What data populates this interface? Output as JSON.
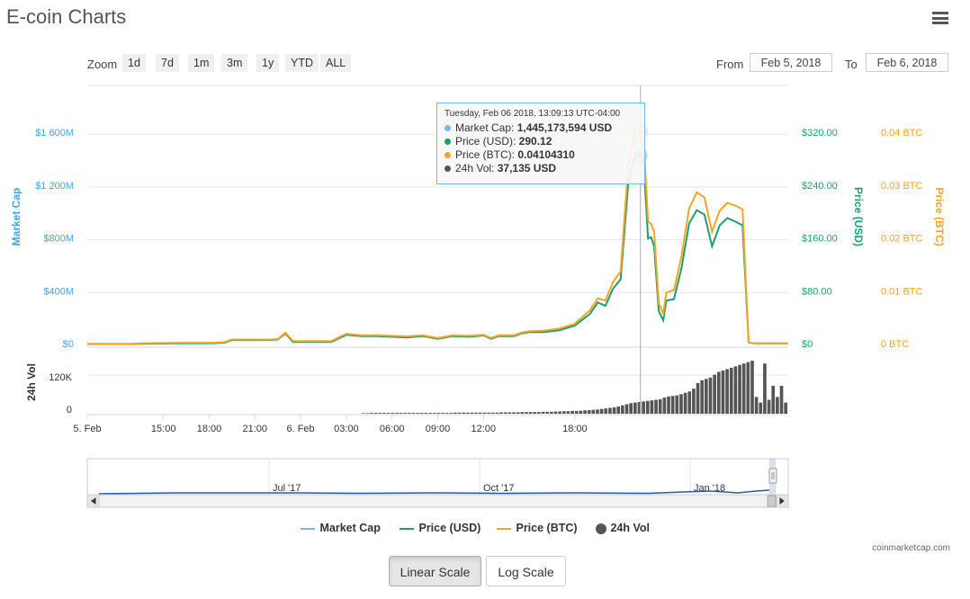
{
  "header": {
    "title": "E-coin Charts"
  },
  "toolbar": {
    "zoom_label": "Zoom",
    "zoom_options": [
      "1d",
      "7d",
      "1m",
      "3m",
      "1y",
      "YTD",
      "ALL"
    ],
    "from_label": "From",
    "from_value": "Feb 5, 2018",
    "to_label": "To",
    "to_value": "Feb 6, 2018"
  },
  "tooltip": {
    "header": "Tuesday, Feb 06 2018, 13:09:13 UTC-04:00",
    "rows": [
      {
        "label": "Market Cap: ",
        "value": "1,445,173,594 USD",
        "color": "#7cb5ec"
      },
      {
        "label": "Price (USD): ",
        "value": "290.12",
        "color": "#1f9e6e"
      },
      {
        "label": "Price (BTC): ",
        "value": "0.04104310",
        "color": "#f7a325"
      },
      {
        "label": "24h Vol: ",
        "value": "37,135 USD",
        "color": "#555555"
      }
    ]
  },
  "legend": {
    "items": [
      {
        "label": "Market Cap",
        "color": "#7cb5ec"
      },
      {
        "label": "Price (USD)",
        "color": "#1f9e6e"
      },
      {
        "label": "Price (BTC)",
        "color": "#f7a325"
      },
      {
        "label": "24h Vol",
        "color": "#555555"
      }
    ]
  },
  "credit": "coinmarketcap.com",
  "scale_buttons": {
    "linear": "Linear Scale",
    "log": "Log Scale"
  },
  "chart_data": {
    "type": "line",
    "x_ticks": [
      "5. Feb",
      "15:00",
      "18:00",
      "21:00",
      "6. Feb",
      "03:00",
      "06:00",
      "09:00",
      "12:00",
      "18:00"
    ],
    "axes": {
      "market_cap": {
        "label": "Market Cap",
        "ticks": [
          "$0",
          "$400M",
          "$800M",
          "$1 200M",
          "$1 600M"
        ],
        "color": "#4aa3df"
      },
      "price_usd": {
        "label": "Price (USD)",
        "ticks": [
          "$0",
          "$80.00",
          "$160.00",
          "$240.00",
          "$320.00"
        ],
        "color": "#1f9e6e",
        "ylim": [
          0,
          320
        ]
      },
      "price_btc": {
        "label": "Price (BTC)",
        "ticks": [
          "0 BTC",
          "0.01 BTC",
          "0.02 BTC",
          "0.03 BTC",
          "0.04 BTC"
        ],
        "color": "#f7a325",
        "ylim": [
          0,
          0.04
        ]
      },
      "volume": {
        "label": "24h Vol",
        "ticks": [
          "0",
          "120K"
        ]
      }
    },
    "hours": [
      0,
      3,
      3.5,
      6,
      8,
      9,
      9.5,
      10,
      12,
      12.5,
      13,
      13.5,
      14,
      15,
      16,
      17,
      18,
      19,
      20,
      21,
      22,
      23,
      24,
      25,
      26,
      26.5,
      27,
      28,
      28.5,
      29,
      30,
      31,
      32,
      33,
      33.5,
      34,
      34.5,
      35,
      35.5,
      36,
      36.3,
      36.5,
      36.8,
      37,
      37.2,
      37.5,
      37.8,
      38,
      38.5,
      39,
      39.5,
      40,
      40.5,
      41,
      41.5,
      42,
      42.5,
      43,
      43.4,
      43.8,
      44,
      44.5,
      45,
      46
    ],
    "series": [
      {
        "name": "Price (USD)",
        "color": "#1f9e6e",
        "values": [
          2,
          2,
          2.5,
          3,
          3,
          4,
          8,
          8,
          8,
          9,
          18,
          5,
          5,
          5,
          5,
          16,
          14,
          14,
          13,
          12,
          14,
          10,
          14,
          13,
          15,
          10,
          14,
          14,
          18,
          20,
          20,
          23,
          30,
          48,
          65,
          60,
          86,
          100,
          245,
          293,
          288,
          282,
          162,
          164,
          150,
          52,
          38,
          68,
          70,
          118,
          185,
          205,
          198,
          150,
          182,
          193,
          188,
          182,
          4,
          3,
          3,
          3,
          3,
          3
        ]
      },
      {
        "name": "Price (BTC)",
        "color": "#f7a325",
        "values": [
          0.0003,
          0.0003,
          0.0004,
          0.0005,
          0.0005,
          0.0006,
          0.0011,
          0.0011,
          0.0011,
          0.0012,
          0.0024,
          0.0008,
          0.0008,
          0.0008,
          0.0008,
          0.0022,
          0.0019,
          0.0019,
          0.0018,
          0.0017,
          0.0019,
          0.0014,
          0.0019,
          0.0018,
          0.002,
          0.0014,
          0.0019,
          0.0019,
          0.0024,
          0.0027,
          0.0028,
          0.0032,
          0.0041,
          0.0067,
          0.0089,
          0.0085,
          0.012,
          0.014,
          0.034,
          0.041,
          0.0405,
          0.0395,
          0.0235,
          0.023,
          0.0215,
          0.008,
          0.006,
          0.01,
          0.0105,
          0.017,
          0.026,
          0.029,
          0.028,
          0.0215,
          0.0255,
          0.027,
          0.0265,
          0.0258,
          0.0005,
          0.0004,
          0.0004,
          0.0004,
          0.0004,
          0.0004
        ]
      }
    ],
    "volume_start_hour": 18,
    "volume_values": [
      2,
      2,
      3,
      3,
      3,
      3,
      3,
      3,
      3,
      3,
      3,
      3,
      3,
      3,
      3,
      3,
      3,
      3,
      3,
      3,
      3,
      3,
      4,
      4,
      4,
      4,
      4,
      4,
      4,
      4,
      4,
      4,
      4,
      5,
      5,
      5,
      5,
      5,
      6,
      6,
      6,
      6,
      6,
      7,
      7,
      7,
      8,
      8,
      9,
      9,
      10,
      10,
      11,
      12,
      13,
      14,
      15,
      17,
      19,
      21,
      23,
      26,
      30,
      34,
      38,
      40,
      42,
      44,
      46,
      48,
      50,
      52,
      58,
      62,
      64,
      66,
      70,
      75,
      80,
      90,
      110,
      120,
      125,
      130,
      140,
      150,
      155,
      160,
      165,
      170,
      175,
      180,
      185,
      190,
      60,
      40,
      180,
      50,
      100,
      60,
      100,
      40
    ],
    "navigator": {
      "ticks": [
        "Jul '17",
        "Oct '17",
        "Jan '18"
      ]
    }
  }
}
